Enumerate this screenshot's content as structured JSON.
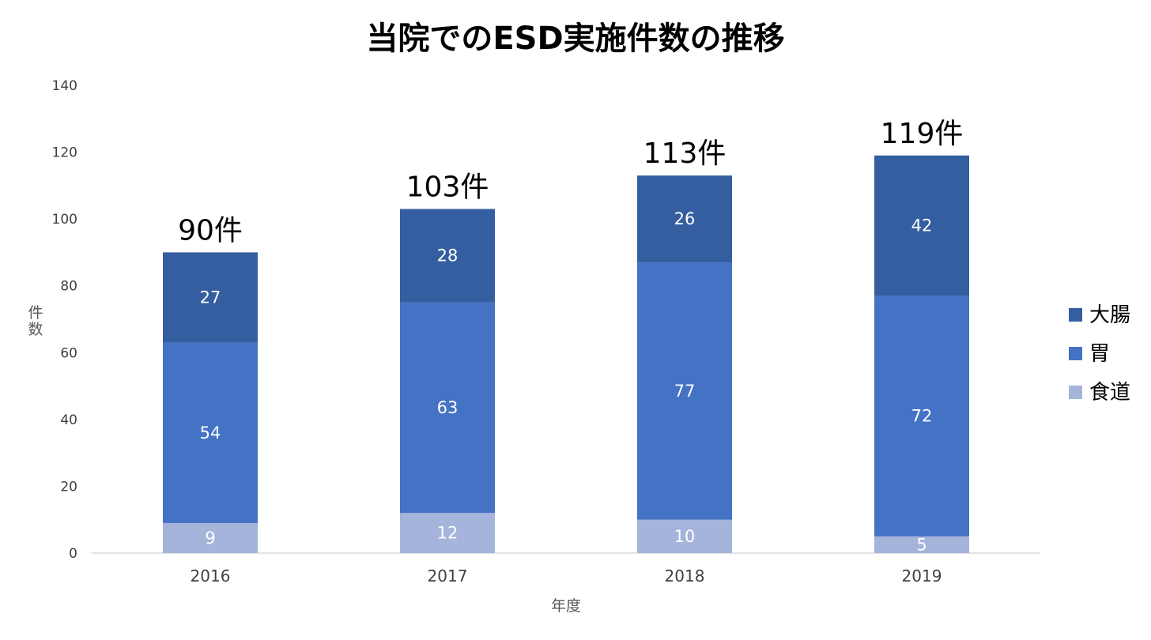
{
  "chart_data": {
    "type": "bar",
    "stacked": true,
    "title": "当院でのESD実施件数の推移",
    "xlabel": "年度",
    "ylabel": "件数",
    "ylim": [
      0,
      140
    ],
    "yticks": [
      0,
      20,
      40,
      60,
      80,
      100,
      120,
      140
    ],
    "grid": false,
    "legend_position": "right",
    "categories": [
      "2016",
      "2017",
      "2018",
      "2019"
    ],
    "series": [
      {
        "name": "食道",
        "values": [
          9,
          12,
          10,
          5
        ],
        "color": "#a5b4db"
      },
      {
        "name": "胃",
        "values": [
          54,
          63,
          77,
          72
        ],
        "color": "#4472c4"
      },
      {
        "name": "大腸",
        "values": [
          27,
          28,
          26,
          42
        ],
        "color": "#345ea0"
      }
    ],
    "totals": [
      "90件",
      "103件",
      "113件",
      "119件"
    ],
    "legend_order": [
      "大腸",
      "胃",
      "食道"
    ]
  }
}
